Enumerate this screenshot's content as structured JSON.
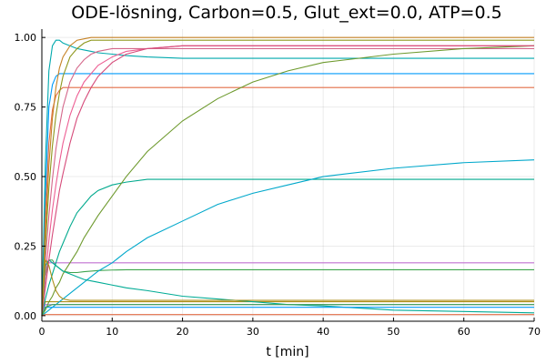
{
  "chart_data": {
    "type": "line",
    "title": "ODE-lösning, Carbon=0.5, Glut_ext=0.0, ATP=0.5",
    "xlabel": "t [min]",
    "ylabel": "",
    "xlim": [
      0,
      70
    ],
    "ylim": [
      -0.02,
      1.03
    ],
    "xticks": [
      0,
      10,
      20,
      30,
      40,
      50,
      60,
      70
    ],
    "xtick_labels": [
      "0",
      "10",
      "20",
      "30",
      "40",
      "50",
      "60",
      "70"
    ],
    "yticks": [
      0,
      0.25,
      0.5,
      0.75,
      1.0
    ],
    "ytick_labels": [
      "0.00",
      "0.25",
      "0.50",
      "0.75",
      "1.00"
    ],
    "grid": true,
    "legend": "none",
    "x": [
      0,
      0.5,
      1,
      1.5,
      2,
      2.5,
      3,
      4,
      5,
      6,
      7,
      8,
      10,
      12,
      15,
      20,
      25,
      30,
      35,
      40,
      50,
      60,
      70
    ],
    "series": [
      {
        "color": "#009AFA",
        "values": [
          0.0,
          0.43,
          0.75,
          0.83,
          0.86,
          0.87,
          0.87,
          0.87,
          0.87,
          0.87,
          0.87,
          0.87,
          0.87,
          0.87,
          0.87,
          0.87,
          0.87,
          0.87,
          0.87,
          0.87,
          0.87,
          0.87,
          0.87
        ]
      },
      {
        "color": "#E36F47",
        "values": [
          0.0,
          0.36,
          0.62,
          0.74,
          0.79,
          0.81,
          0.82,
          0.82,
          0.82,
          0.82,
          0.82,
          0.82,
          0.82,
          0.82,
          0.82,
          0.82,
          0.82,
          0.82,
          0.82,
          0.82,
          0.82,
          0.82,
          0.82
        ]
      },
      {
        "color": "#3EA44E",
        "values": [
          0.0,
          0.14,
          0.2,
          0.2,
          0.18,
          0.17,
          0.16,
          0.155,
          0.155,
          0.158,
          0.16,
          0.162,
          0.164,
          0.165,
          0.165,
          0.165,
          0.165,
          0.165,
          0.165,
          0.165,
          0.165,
          0.165,
          0.165
        ]
      },
      {
        "color": "#C271D2",
        "values": [
          0.0,
          0.18,
          0.19,
          0.19,
          0.19,
          0.19,
          0.19,
          0.19,
          0.19,
          0.19,
          0.19,
          0.19,
          0.19,
          0.19,
          0.19,
          0.19,
          0.19,
          0.19,
          0.19,
          0.19,
          0.19,
          0.19,
          0.19
        ]
      },
      {
        "color": "#AC8E18",
        "values": [
          0.0,
          0.05,
          0.05,
          0.05,
          0.05,
          0.05,
          0.05,
          0.05,
          0.05,
          0.05,
          0.05,
          0.05,
          0.05,
          0.05,
          0.05,
          0.05,
          0.05,
          0.05,
          0.05,
          0.05,
          0.05,
          0.05,
          0.05
        ]
      },
      {
        "color": "#00A9AD",
        "values": [
          0.0,
          0.55,
          0.88,
          0.97,
          0.99,
          0.99,
          0.98,
          0.97,
          0.96,
          0.955,
          0.95,
          0.945,
          0.94,
          0.935,
          0.93,
          0.925,
          0.925,
          0.925,
          0.925,
          0.925,
          0.925,
          0.925,
          0.925
        ]
      },
      {
        "color": "#ED5E93",
        "values": [
          0.0,
          0.14,
          0.27,
          0.38,
          0.47,
          0.55,
          0.62,
          0.72,
          0.79,
          0.84,
          0.87,
          0.9,
          0.93,
          0.95,
          0.96,
          0.97,
          0.97,
          0.97,
          0.97,
          0.97,
          0.97,
          0.97,
          0.97
        ]
      },
      {
        "color": "#C68225",
        "values": [
          0.0,
          0.3,
          0.54,
          0.71,
          0.82,
          0.89,
          0.93,
          0.97,
          0.99,
          0.995,
          1.0,
          1.0,
          1.0,
          1.0,
          1.0,
          1.0,
          1.0,
          1.0,
          1.0,
          1.0,
          1.0,
          1.0,
          1.0
        ]
      },
      {
        "color": "#00A98D",
        "values": [
          0.0,
          0.06,
          0.11,
          0.15,
          0.19,
          0.23,
          0.26,
          0.32,
          0.37,
          0.4,
          0.43,
          0.45,
          0.47,
          0.48,
          0.49,
          0.49,
          0.49,
          0.49,
          0.49,
          0.49,
          0.49,
          0.49,
          0.49
        ]
      },
      {
        "color": "#8E971D",
        "values": [
          0.0,
          0.25,
          0.46,
          0.61,
          0.72,
          0.8,
          0.86,
          0.93,
          0.96,
          0.98,
          0.99,
          0.99,
          0.99,
          0.99,
          0.99,
          0.99,
          0.99,
          0.99,
          0.99,
          0.99,
          0.99,
          0.99,
          0.99
        ]
      },
      {
        "color": "#00A8CB",
        "values": [
          0.0,
          0.01,
          0.02,
          0.03,
          0.04,
          0.05,
          0.06,
          0.08,
          0.1,
          0.12,
          0.14,
          0.16,
          0.19,
          0.23,
          0.28,
          0.34,
          0.4,
          0.44,
          0.47,
          0.5,
          0.53,
          0.55,
          0.56
        ]
      },
      {
        "color": "#9B7FE9",
        "values": [
          0.0,
          0.04,
          0.04,
          0.04,
          0.04,
          0.04,
          0.04,
          0.04,
          0.04,
          0.04,
          0.04,
          0.04,
          0.04,
          0.04,
          0.04,
          0.04,
          0.04,
          0.04,
          0.04,
          0.04,
          0.04,
          0.04,
          0.04
        ]
      },
      {
        "color": "#D4678A",
        "values": [
          0.0,
          0.2,
          0.36,
          0.49,
          0.6,
          0.68,
          0.75,
          0.84,
          0.89,
          0.92,
          0.94,
          0.95,
          0.96,
          0.96,
          0.96,
          0.96,
          0.96,
          0.96,
          0.96,
          0.96,
          0.96,
          0.96,
          0.96
        ]
      },
      {
        "color": "#6E9A2E",
        "values": [
          0.0,
          0.02,
          0.05,
          0.07,
          0.1,
          0.12,
          0.15,
          0.19,
          0.23,
          0.28,
          0.32,
          0.36,
          0.43,
          0.5,
          0.59,
          0.7,
          0.78,
          0.84,
          0.88,
          0.91,
          0.94,
          0.96,
          0.97
        ]
      },
      {
        "color": "#00AB95",
        "values": [
          0.0,
          0.18,
          0.2,
          0.19,
          0.18,
          0.17,
          0.16,
          0.15,
          0.14,
          0.13,
          0.125,
          0.12,
          0.11,
          0.1,
          0.09,
          0.07,
          0.06,
          0.05,
          0.04,
          0.035,
          0.02,
          0.015,
          0.01
        ]
      },
      {
        "color": "#D64B7A",
        "values": [
          0.0,
          0.1,
          0.2,
          0.29,
          0.37,
          0.45,
          0.51,
          0.62,
          0.71,
          0.77,
          0.82,
          0.86,
          0.91,
          0.94,
          0.96,
          0.97,
          0.97,
          0.97,
          0.97,
          0.97,
          0.97,
          0.97,
          0.97
        ]
      },
      {
        "color": "#009AFA",
        "values": [
          0.0,
          0.03,
          0.03,
          0.03,
          0.03,
          0.03,
          0.03,
          0.03,
          0.03,
          0.03,
          0.03,
          0.03,
          0.03,
          0.03,
          0.03,
          0.03,
          0.03,
          0.03,
          0.03,
          0.03,
          0.03,
          0.03,
          0.03
        ]
      },
      {
        "color": "#AC8E18",
        "values": [
          0.0,
          0.2,
          0.18,
          0.13,
          0.09,
          0.07,
          0.06,
          0.055,
          0.055,
          0.055,
          0.055,
          0.055,
          0.055,
          0.055,
          0.055,
          0.055,
          0.055,
          0.055,
          0.055,
          0.055,
          0.055,
          0.055,
          0.055
        ]
      },
      {
        "color": "#3EA44E",
        "values": [
          0.0,
          0.03,
          0.035,
          0.04,
          0.04,
          0.04,
          0.04,
          0.04,
          0.04,
          0.04,
          0.04,
          0.04,
          0.04,
          0.04,
          0.04,
          0.04,
          0.04,
          0.04,
          0.04,
          0.04,
          0.04,
          0.04,
          0.04
        ]
      },
      {
        "color": "#E36F47",
        "values": [
          0.0,
          0.004,
          0.004,
          0.004,
          0.004,
          0.004,
          0.004,
          0.004,
          0.004,
          0.004,
          0.004,
          0.004,
          0.004,
          0.004,
          0.004,
          0.004,
          0.004,
          0.004,
          0.004,
          0.004,
          0.004,
          0.004,
          0.004
        ]
      }
    ]
  }
}
